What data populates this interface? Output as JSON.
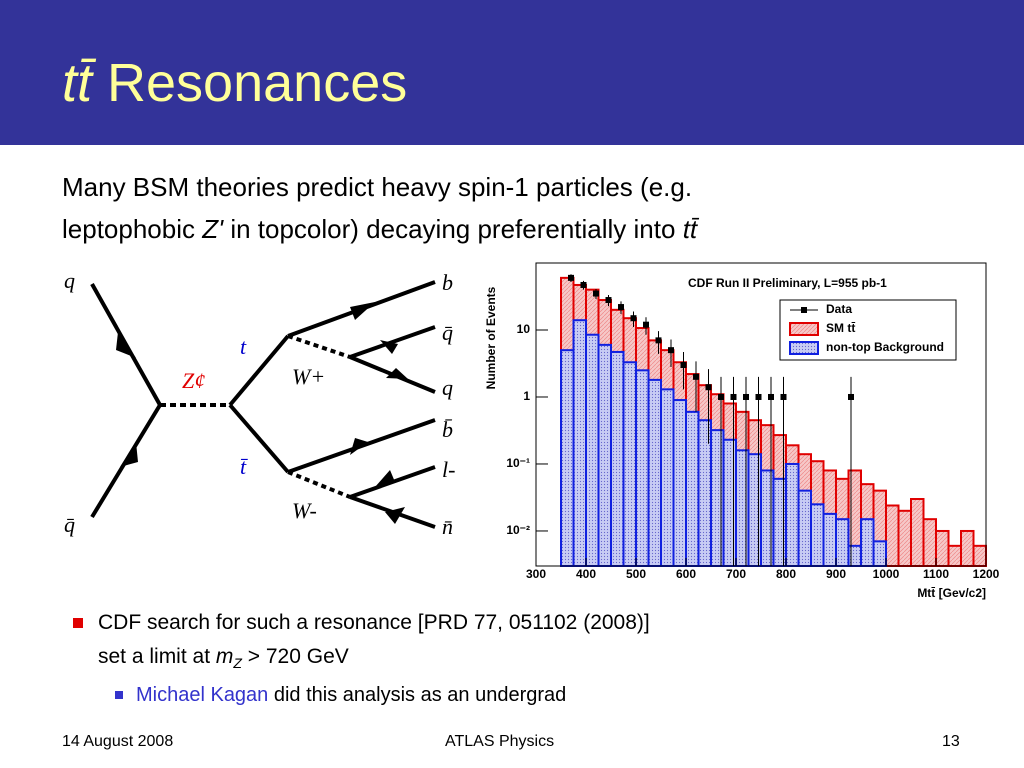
{
  "header": {
    "title_symbol": "tt̄",
    "title": "Resonances"
  },
  "intro": {
    "line1": "Many BSM theories predict heavy spin-1 particles (e.g.",
    "line2_a": "leptophobic ",
    "line2_z": "Z'",
    "line2_b": " in topcolor) decaying preferentially into ",
    "line2_tt": "tt̄"
  },
  "diagram": {
    "labels": [
      "q",
      "q̄",
      "Z¢",
      "t",
      "t̄",
      "W+",
      "W-",
      "b",
      "q̄",
      "q",
      "b̄",
      "l-",
      "n̄"
    ]
  },
  "bullets": {
    "b1_line1": "CDF search for such a resonance [PRD 77, 051102 (2008)]",
    "b1_line2_a": "set a limit at ",
    "b1_m": "m",
    "b1_sub": "Z",
    "b1_line2_b": " > 720 GeV",
    "sub_name": "Michael Kagan",
    "sub_rest": " did this analysis as an undergrad"
  },
  "footer": {
    "date": "14 August 2008",
    "center": "ATLAS Physics",
    "page": "13"
  },
  "chart_data": {
    "type": "histogram",
    "title": "CDF Run II Preliminary, L=955 pb-1",
    "x_label": "Mtt̄ [Gev/c2]",
    "y_label": "Number of Events",
    "log_y": true,
    "bins": [
      350,
      375,
      400,
      425,
      450,
      475,
      500,
      525,
      550,
      575,
      600,
      625,
      650,
      675,
      700,
      725,
      750,
      775,
      800,
      825,
      850,
      875,
      900,
      925,
      950,
      975,
      1000,
      1025,
      1050,
      1075,
      1100,
      1125,
      1150,
      1175,
      1200
    ],
    "series": [
      {
        "name": "SM tt̄",
        "color": "#e00000",
        "values": [
          60,
          47,
          40,
          28,
          20,
          15,
          10.7,
          7,
          5,
          3.3,
          2.2,
          1.5,
          1.1,
          0.8,
          0.6,
          0.45,
          0.38,
          0.27,
          0.19,
          0.14,
          0.11,
          0.08,
          0.06,
          0.08,
          0.05,
          0.04,
          0.024,
          0.02,
          0.03,
          0.015,
          0.01,
          0.006,
          0.01,
          0.006
        ]
      },
      {
        "name": "non-top Background",
        "color": "#1020e0",
        "values": [
          5,
          14,
          8.5,
          6,
          4.7,
          3.3,
          2.5,
          1.8,
          1.3,
          0.9,
          0.6,
          0.45,
          0.32,
          0.23,
          0.16,
          0.14,
          0.08,
          0.06,
          0.1,
          0.04,
          0.025,
          0.018,
          0.015,
          0.006,
          0.015,
          0.007,
          null,
          null,
          null,
          null,
          null,
          null,
          null,
          null
        ]
      },
      {
        "name": "Data",
        "color": "#000000",
        "x": [
          370,
          395,
          420,
          445,
          470,
          495,
          520,
          545,
          570,
          595,
          620,
          645,
          670,
          695,
          720,
          745,
          770,
          795,
          930
        ],
        "values": [
          60,
          47,
          35,
          28,
          22,
          15,
          12,
          7,
          5,
          3,
          2,
          1.4,
          1,
          1,
          1,
          1,
          1,
          1,
          1
        ],
        "errors": [
          8,
          7,
          6,
          5.3,
          4.7,
          3.9,
          3.5,
          2.6,
          2.2,
          1.7,
          1.4,
          1.2,
          1,
          1,
          1,
          1,
          1,
          1,
          1
        ]
      }
    ],
    "xlim": [
      300,
      1200
    ],
    "ylim": [
      0.003,
      100
    ],
    "xticks": [
      300,
      400,
      500,
      600,
      700,
      800,
      900,
      1000,
      1100,
      1200
    ],
    "yticks": [
      {
        "value": 0.01,
        "label": "10⁻²"
      },
      {
        "value": 0.1,
        "label": "10⁻¹"
      },
      1,
      10
    ]
  }
}
